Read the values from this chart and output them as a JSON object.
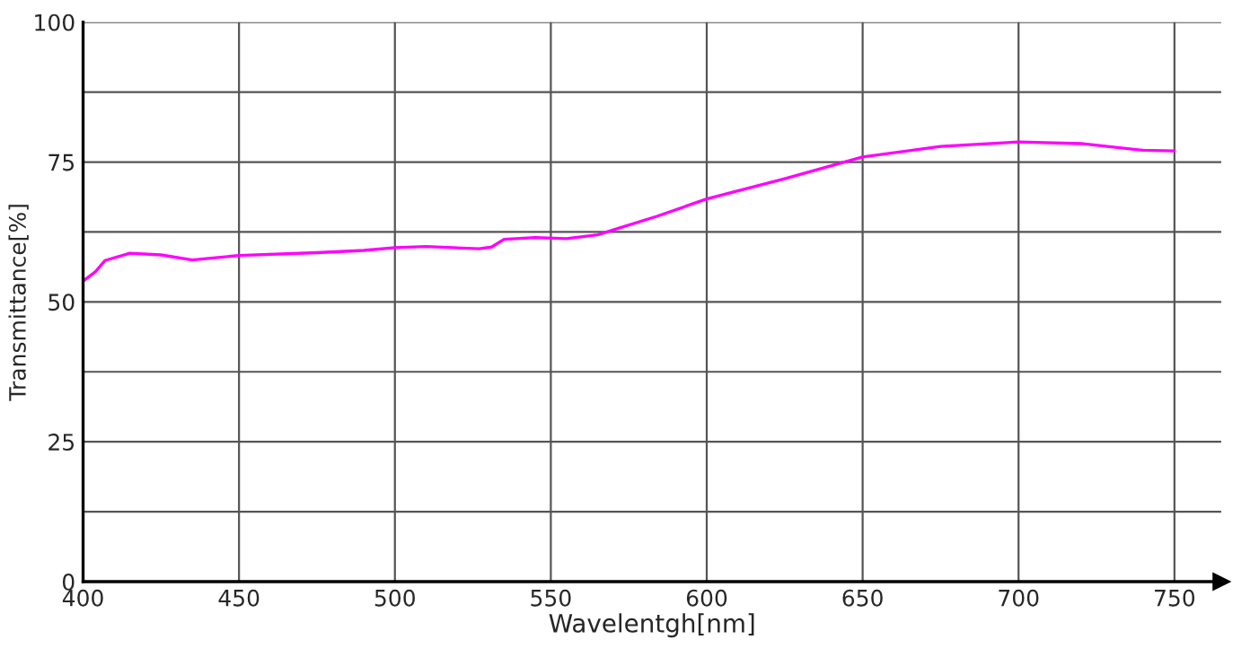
{
  "chart_data": {
    "type": "line",
    "xlabel": "Wavelentgh[nm]",
    "ylabel": "Transmittance[%]",
    "x": [
      400,
      404,
      407,
      415,
      425,
      435,
      450,
      475,
      490,
      500,
      510,
      527,
      531,
      535,
      545,
      555,
      565,
      584,
      600,
      625,
      650,
      675,
      700,
      720,
      740,
      750
    ],
    "series": [
      {
        "color": "#ff00ff",
        "values": [
          53.7,
          55.4,
          57.4,
          58.7,
          58.4,
          57.5,
          58.3,
          58.8,
          59.2,
          59.7,
          59.9,
          59.5,
          59.8,
          61.2,
          61.5,
          61.3,
          62.0,
          65.3,
          68.4,
          72.0,
          75.9,
          77.8,
          78.6,
          78.3,
          77.1,
          77.0
        ]
      }
    ],
    "xlim": [
      400,
      765
    ],
    "xticks": [
      400,
      450,
      500,
      550,
      600,
      650,
      700,
      750
    ],
    "ylim": [
      0,
      100
    ],
    "yticks": [
      0,
      {
        "value": 12.5,
        "label": null
      },
      25,
      {
        "value": 37.5,
        "label": null
      },
      50,
      {
        "value": 62.5,
        "label": null
      },
      75,
      {
        "value": 87.5,
        "label": null
      },
      100
    ],
    "grid": true,
    "marker": "none",
    "line_style": "solid",
    "legend": false
  }
}
